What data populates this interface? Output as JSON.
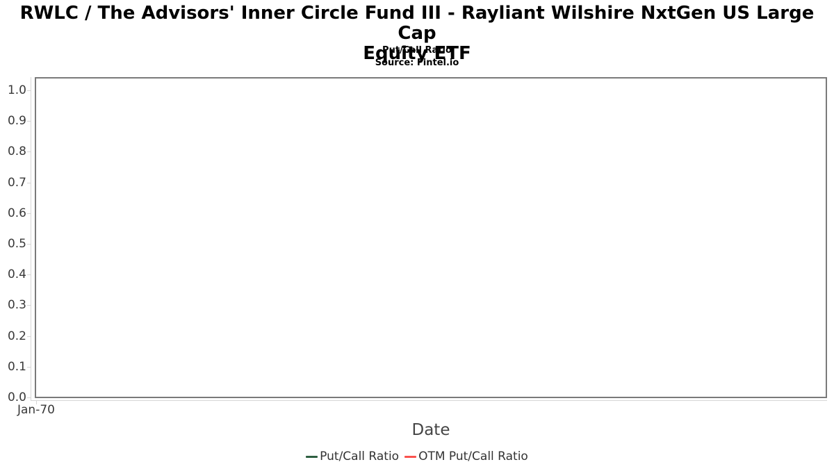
{
  "header": {
    "title_line1": "RWLC / The Advisors' Inner Circle Fund III - Rayliant Wilshire NxtGen US Large Cap",
    "title_line2": "Equity ETF",
    "subtitle": "Put/Call Ratio",
    "source": "Source: Fintel.io"
  },
  "chart_data": {
    "type": "line",
    "title": "RWLC / The Advisors' Inner Circle Fund III - Rayliant Wilshire NxtGen US Large Cap Equity ETF",
    "subtitle": "Put/Call Ratio",
    "source": "Source: Fintel.io",
    "xlabel": "Date",
    "ylabel": "",
    "ylim": [
      0,
      1.045
    ],
    "yticks": [
      0.0,
      0.1,
      0.2,
      0.3,
      0.4,
      0.5,
      0.6,
      0.7,
      0.8,
      0.9,
      1.0
    ],
    "ytick_labels": [
      "0.0",
      "0.1",
      "0.2",
      "0.3",
      "0.4",
      "0.5",
      "0.6",
      "0.7",
      "0.8",
      "0.9",
      "1.0"
    ],
    "xtick_labels": [
      "Jan-70"
    ],
    "grid": "horizontal",
    "legend_position": "bottom",
    "series": [
      {
        "name": "Put/Call Ratio",
        "color": "#2e5f41",
        "x": [],
        "values": []
      },
      {
        "name": "OTM Put/Call Ratio",
        "color": "#fa524e",
        "x": [],
        "values": []
      }
    ]
  },
  "colors": {
    "gridline": "#e6e6e6",
    "axis_line": "#d6d6d6",
    "plot_border": "#7a7a7a",
    "tick_label": "#383838",
    "axis_title": "#454545",
    "legend_text": "#333333"
  }
}
